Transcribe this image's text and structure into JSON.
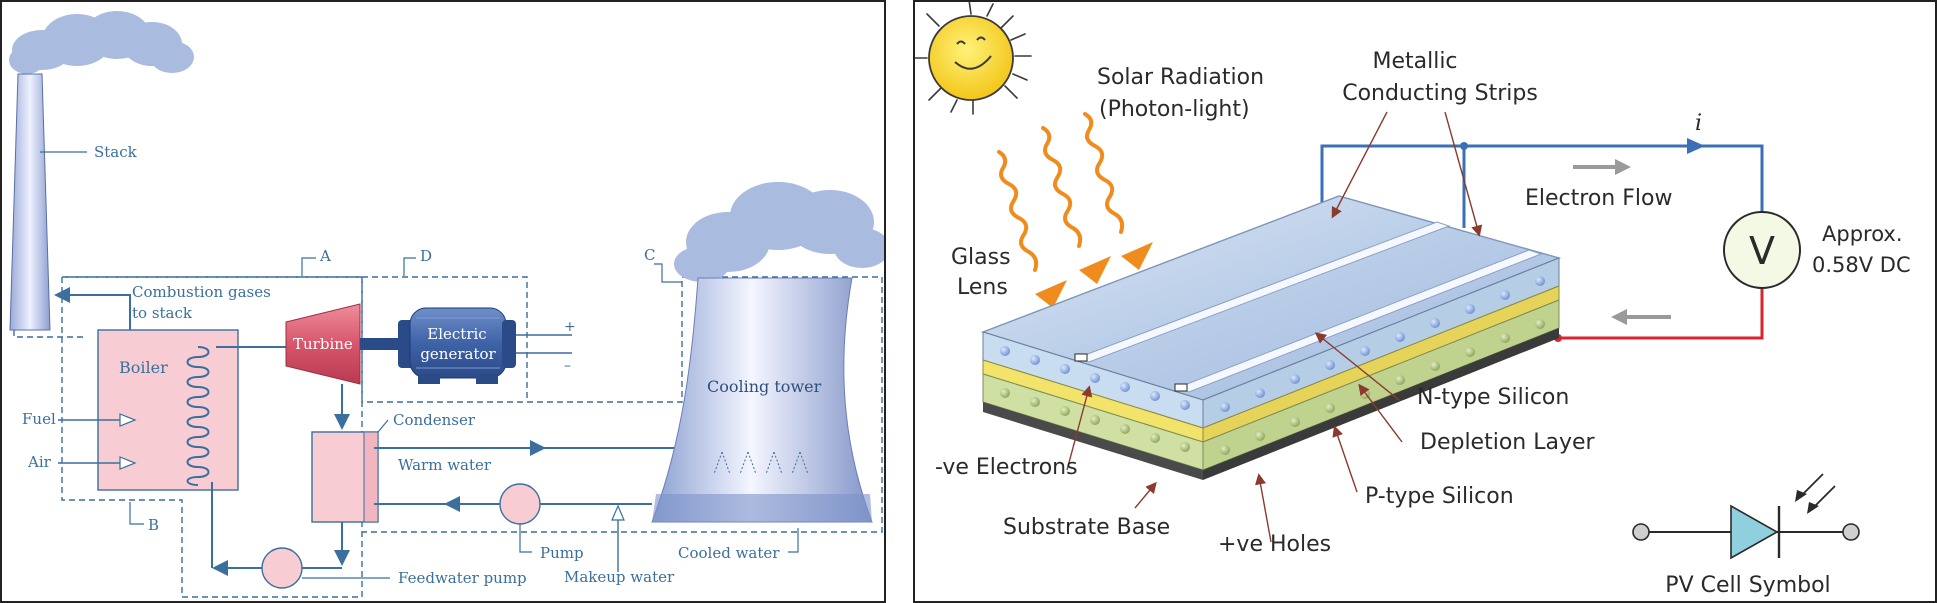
{
  "power_plant": {
    "labels": {
      "stack": "Stack",
      "combustion": "Combustion gases",
      "to_stack": "to stack",
      "boiler": "Boiler",
      "turbine": "Turbine",
      "generator_line1": "Electric",
      "generator_line2": "generator",
      "plus": "+",
      "minus": "–",
      "fuel": "Fuel",
      "air": "Air",
      "condenser": "Condenser",
      "warm_water": "Warm water",
      "cooling_tower": "Cooling tower",
      "pump": "Pump",
      "cooled_water": "Cooled water",
      "feedwater_pump": "Feedwater pump",
      "makeup_water": "Makeup water"
    },
    "zones": {
      "a": "A",
      "b": "B",
      "c": "C",
      "d": "D"
    }
  },
  "solar_cell": {
    "labels": {
      "solar_radiation": "Solar Radiation",
      "photon_light": "(Photon-light)",
      "metallic": "Metallic",
      "conducting_strips": "Conducting Strips",
      "current_symbol": "i",
      "electron_flow": "Electron Flow",
      "voltmeter": "V",
      "approx": "Approx.",
      "voltage": "0.58V DC",
      "glass": "Glass",
      "lens": "Lens",
      "n_type": "N-type Silicon",
      "depletion": "Depletion Layer",
      "ve_electrons": "-ve Electrons",
      "p_type": "P-type Silicon",
      "substrate": "Substrate Base",
      "ve_holes": "+ve Holes",
      "pv_symbol": "PV Cell Symbol"
    }
  },
  "colors": {
    "diagram_blue": "#3a6f9e",
    "boiler_pink": "#f7cdd3",
    "turbine_red": "#d8566b",
    "smoke": "#a9bbdf",
    "wire_blue": "#3b6fb6",
    "wire_red": "#d8262e",
    "ray_orange": "#f08c1e",
    "n_layer": "#c9ddf0",
    "depletion_yellow": "#f2e36a",
    "p_layer": "#cfe0a2"
  }
}
